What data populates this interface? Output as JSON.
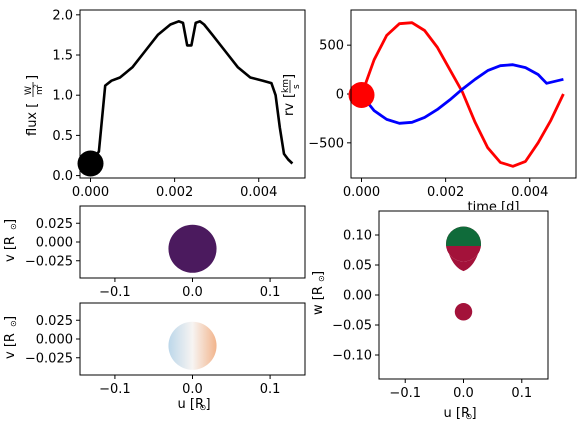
{
  "chart_data": [
    {
      "type": "line",
      "ylabel_main": "flux [",
      "ylabel_unit_num": "W",
      "ylabel_unit_den": "m",
      "ylabel_unit_exp": "2",
      "ylabel_end": "]",
      "xlim": [
        -0.00025,
        0.0051
      ],
      "ylim": [
        -0.03,
        2.06
      ],
      "xticks": [
        0.0,
        0.002,
        0.004
      ],
      "xtick_labels": [
        "0.000",
        "0.002",
        "0.004"
      ],
      "yticks": [
        0.0,
        0.5,
        1.0,
        1.5,
        2.0
      ],
      "ytick_labels": [
        "0.0",
        "0.5",
        "1.0",
        "1.5",
        "2.0"
      ],
      "series": [
        {
          "color": "#000000",
          "x": [
            0.0,
            0.0002,
            0.00035,
            0.0005,
            0.0007,
            0.001,
            0.0013,
            0.0016,
            0.0019,
            0.0021,
            0.0022,
            0.0023,
            0.0024,
            0.0025,
            0.0026,
            0.0027,
            0.0029,
            0.0032,
            0.0035,
            0.0038,
            0.0041,
            0.0043,
            0.0044,
            0.0045,
            0.0046,
            0.0047,
            0.0048
          ],
          "y": [
            0.15,
            0.3,
            1.12,
            1.18,
            1.22,
            1.35,
            1.55,
            1.75,
            1.88,
            1.92,
            1.9,
            1.62,
            1.62,
            1.9,
            1.92,
            1.88,
            1.75,
            1.55,
            1.35,
            1.22,
            1.18,
            1.15,
            1.0,
            0.6,
            0.27,
            0.2,
            0.15
          ]
        }
      ],
      "marker": {
        "x": 0.0,
        "y": 0.15,
        "color": "#000000"
      }
    },
    {
      "type": "line",
      "ylabel": "rv",
      "ylabel_unit_num": "km",
      "ylabel_unit_den": "s",
      "xlabel": "time [d]",
      "xlim": [
        -0.00025,
        0.0051
      ],
      "ylim": [
        -860,
        860
      ],
      "xticks": [
        0.0,
        0.002,
        0.004
      ],
      "xtick_labels": [
        "0.000",
        "0.002",
        "0.004"
      ],
      "yticks": [
        500,
        0,
        -500
      ],
      "ytick_labels": [
        "500",
        "0",
        "−500"
      ],
      "series": [
        {
          "color": "#ff0000",
          "x": [
            0.0,
            0.0003,
            0.0006,
            0.0009,
            0.0012,
            0.0015,
            0.0018,
            0.0021,
            0.0024,
            0.0027,
            0.003,
            0.0033,
            0.0036,
            0.0039,
            0.0042,
            0.0045,
            0.0048
          ],
          "y": [
            -10,
            350,
            600,
            720,
            730,
            650,
            480,
            250,
            20,
            -290,
            -550,
            -700,
            -740,
            -690,
            -500,
            -270,
            0
          ]
        },
        {
          "color": "#0000ff",
          "x": [
            0.0,
            0.0003,
            0.0006,
            0.0009,
            0.0012,
            0.0015,
            0.0018,
            0.0021,
            0.0024,
            0.0027,
            0.003,
            0.0033,
            0.0036,
            0.0039,
            0.0042,
            0.0044,
            0.0046,
            0.0048
          ],
          "y": [
            -10,
            -170,
            -260,
            -300,
            -290,
            -240,
            -160,
            -60,
            50,
            150,
            240,
            290,
            300,
            270,
            200,
            110,
            130,
            150
          ]
        }
      ],
      "marker": {
        "x": 0.0,
        "y": -10,
        "color": "#ff0000"
      }
    },
    {
      "type": "scatter",
      "ylabel": "v [R",
      "ylabel_end": "]",
      "xlim": [
        -0.145,
        0.145
      ],
      "ylim": [
        -0.048,
        0.048
      ],
      "xticks": [
        -0.1,
        0.0,
        0.1
      ],
      "xtick_labels": [
        "−0.1",
        "0.0",
        "0.1"
      ],
      "yticks": [
        0.025,
        0.0,
        -0.025
      ],
      "ytick_labels": [
        "0.025",
        "0.000",
        "−0.025"
      ],
      "disk": {
        "cx": 0.0,
        "cy": -0.009,
        "r": 0.031,
        "color": "#4b1a5e"
      }
    },
    {
      "type": "scatter",
      "ylabel": "v [R",
      "ylabel_end": "]",
      "xlabel": "u [R",
      "xlabel_end": "]",
      "xlim": [
        -0.145,
        0.145
      ],
      "ylim": [
        -0.048,
        0.048
      ],
      "xticks": [
        -0.1,
        0.0,
        0.1
      ],
      "xtick_labels": [
        "−0.1",
        "0.0",
        "0.1"
      ],
      "yticks": [
        0.025,
        0.0,
        -0.025
      ],
      "ytick_labels": [
        "0.025",
        "0.000",
        "−0.025"
      ],
      "disk": {
        "cx": 0.0,
        "cy": -0.009,
        "r": 0.031,
        "color_left": "#bcd7ea",
        "color_right": "#f2b48c"
      }
    },
    {
      "type": "scatter",
      "ylabel": "w [R",
      "ylabel_end": "]",
      "xlabel": "u [R",
      "xlabel_end": "]",
      "xlim": [
        -0.145,
        0.145
      ],
      "ylim": [
        -0.14,
        0.14
      ],
      "xticks": [
        -0.1,
        0.0,
        0.1
      ],
      "xtick_labels": [
        "−0.1",
        "0.0",
        "0.1"
      ],
      "yticks": [
        0.1,
        0.05,
        0.0,
        -0.05,
        -0.1
      ],
      "ytick_labels": [
        "0.10",
        "0.05",
        "0.00",
        "−0.05",
        "−0.10"
      ],
      "top_disk": {
        "cx": 0.0,
        "cy": 0.085,
        "r": 0.03,
        "color_top": "#0f6b3a",
        "color_bottom": "#a3123a"
      },
      "small_disk": {
        "cx": 0.0,
        "cy": -0.028,
        "r": 0.015,
        "color": "#a3123a"
      }
    }
  ]
}
